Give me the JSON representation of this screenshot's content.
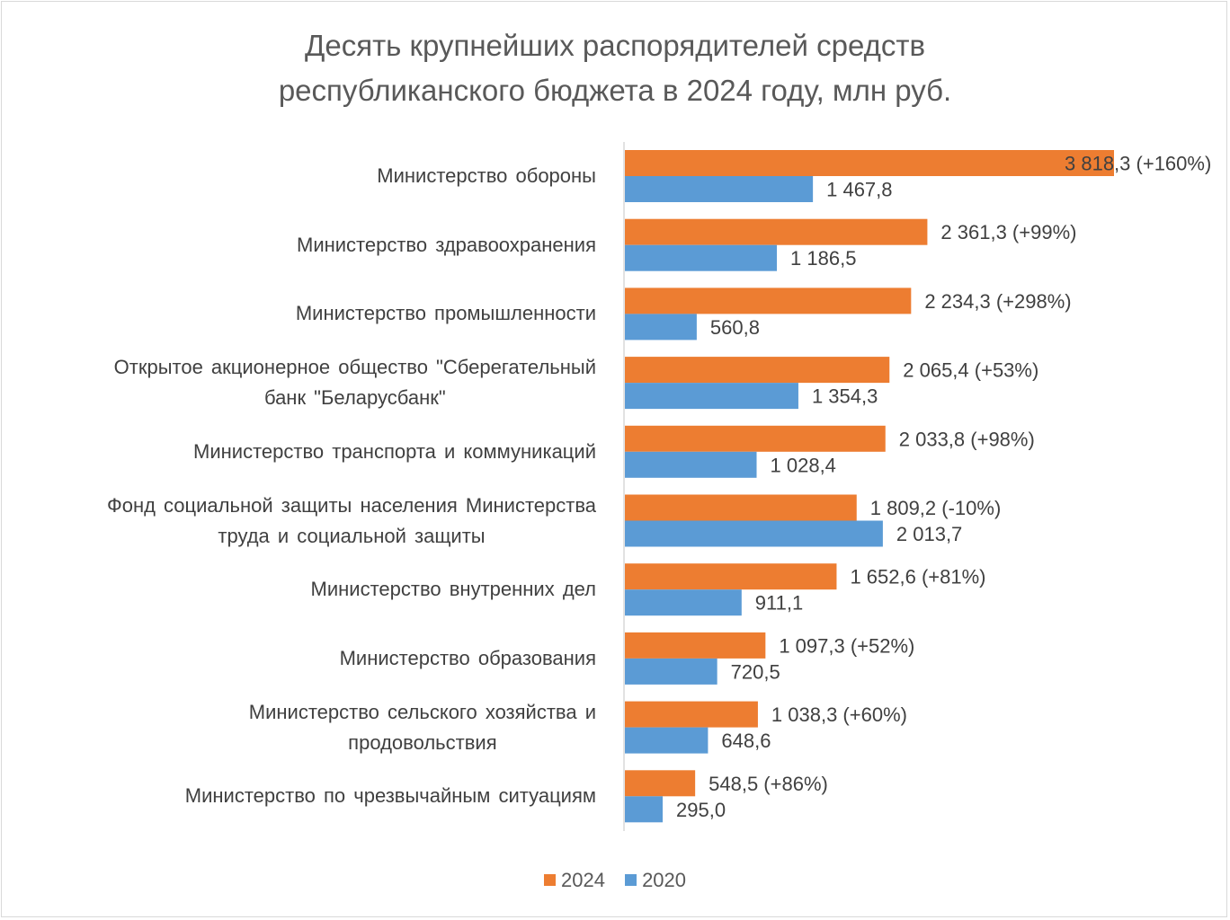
{
  "chart_data": {
    "type": "bar",
    "orientation": "horizontal",
    "title": [
      "Десять крупнейших распорядителей средств",
      "республиканского бюджета в 2024 году, млн руб."
    ],
    "xlabel": "",
    "ylabel": "",
    "xlim": [
      0,
      3818.3
    ],
    "grid": false,
    "legend_position": "bottom",
    "categories": [
      [
        "Министерство обороны"
      ],
      [
        "Министерство здравоохранения"
      ],
      [
        "Министерство промышленности"
      ],
      [
        "Открытое акционерное общество \"Сберегательный",
        "банк \"Беларусбанк\""
      ],
      [
        "Министерство транспорта и коммуникаций"
      ],
      [
        "Фонд социальной защиты населения Министерства",
        "труда и социальной защиты"
      ],
      [
        "Министерство внутренних дел"
      ],
      [
        "Министерство образования"
      ],
      [
        "Министерство сельского хозяйства и",
        "продовольствия"
      ],
      [
        "Министерство по чрезвычайным ситуациям"
      ]
    ],
    "series": [
      {
        "name": "2024",
        "color": "#ED7D31",
        "values": [
          3818.3,
          2361.3,
          2234.3,
          2065.4,
          2033.8,
          1809.2,
          1652.6,
          1097.3,
          1038.3,
          548.5
        ],
        "labels": [
          "3 818,3 (+160%)",
          "2 361,3 (+99%)",
          "2 234,3 (+298%)",
          "2 065,4 (+53%)",
          "2 033,8 (+98%)",
          "1 809,2 (-10%)",
          "1 652,6 (+81%)",
          "1 097,3 (+52%)",
          "1 038,3 (+60%)",
          "548,5 (+86%)"
        ]
      },
      {
        "name": "2020",
        "color": "#5B9BD5",
        "values": [
          1467.8,
          1186.5,
          560.8,
          1354.3,
          1028.4,
          2013.7,
          911.1,
          720.5,
          648.6,
          295.0
        ],
        "labels": [
          "1 467,8",
          "1 186,5",
          "560,8",
          "1 354,3",
          "1 028,4",
          "2 013,7",
          "911,1",
          "720,5",
          "648,6",
          "295,0"
        ]
      }
    ]
  }
}
